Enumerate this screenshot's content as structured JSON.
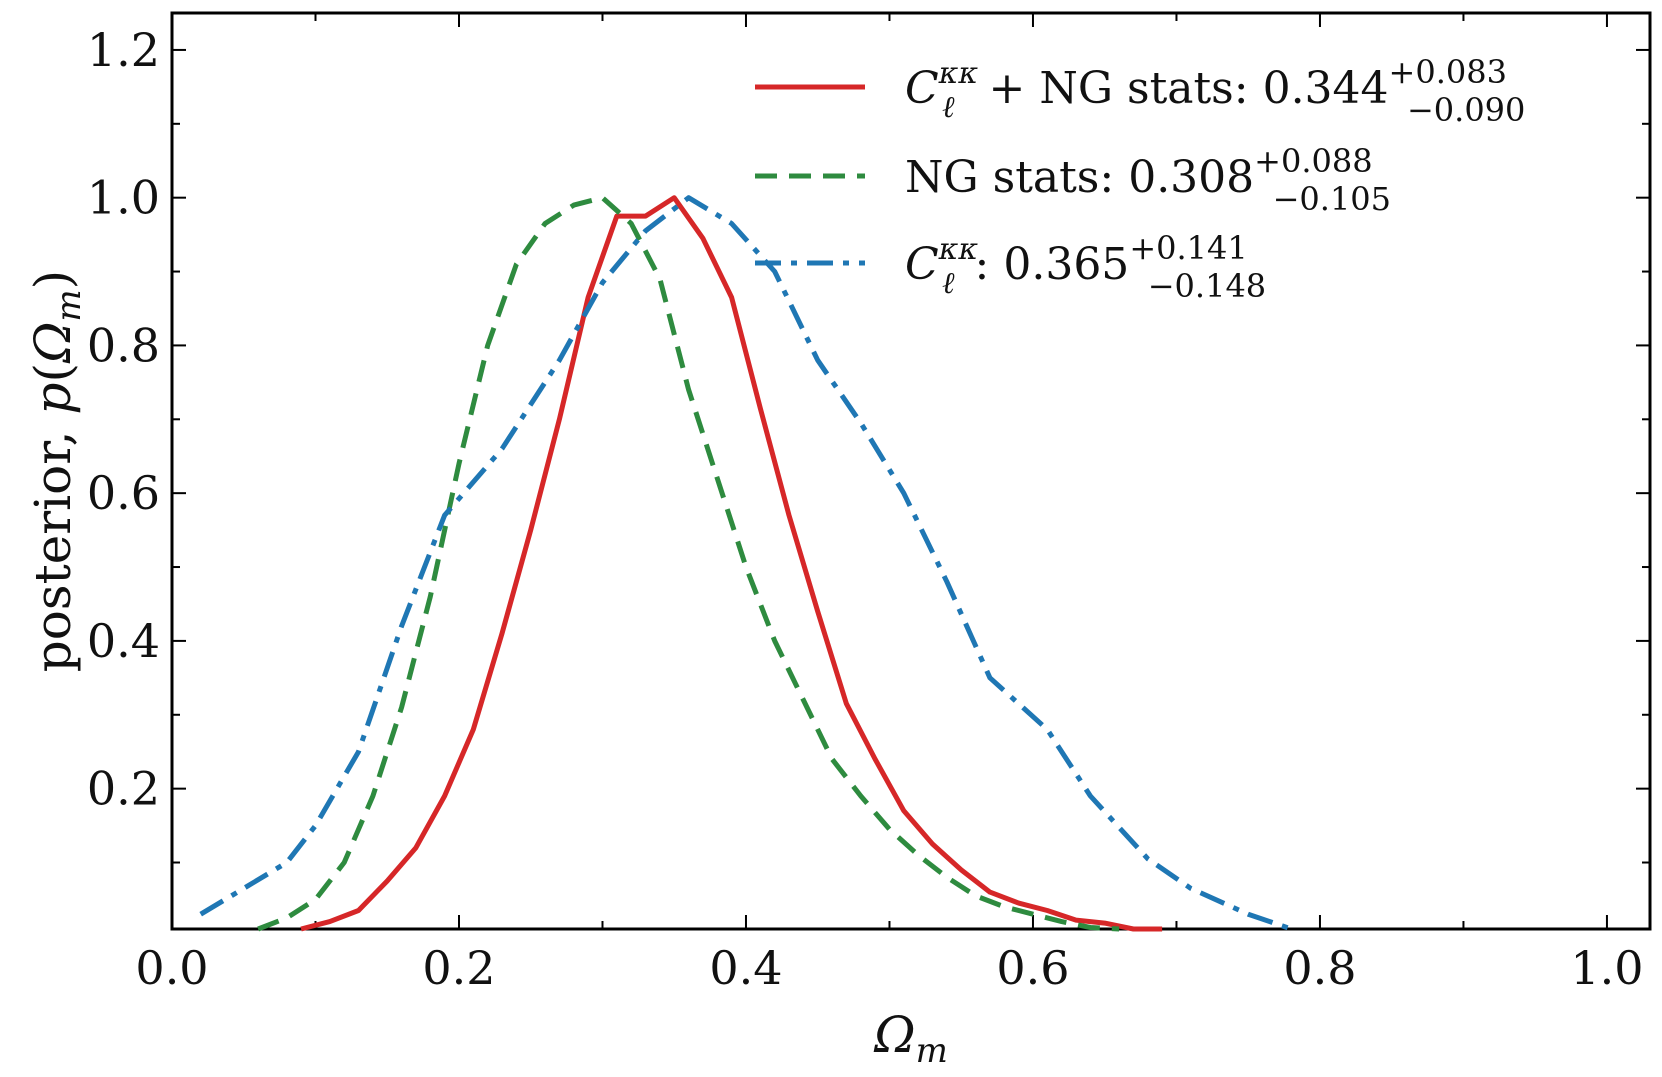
{
  "chart_data": {
    "type": "line",
    "title": "",
    "xlabel": "Ω_m",
    "ylabel": "posterior, p(Ω_m)",
    "xlim": [
      0.0,
      1.03
    ],
    "ylim": [
      0.01,
      1.25
    ],
    "xticks": [
      0.0,
      0.2,
      0.4,
      0.6,
      0.8,
      1.0
    ],
    "xtick_labels": [
      "0.0",
      "0.2",
      "0.4",
      "0.6",
      "0.8",
      "1.0"
    ],
    "yticks": [
      0.2,
      0.4,
      0.6,
      0.8,
      1.0,
      1.2
    ],
    "ytick_labels": [
      "0.2",
      "0.4",
      "0.6",
      "0.8",
      "1.0",
      "1.2"
    ],
    "grid": false,
    "legend_position": "top-right",
    "series": [
      {
        "name": "C_ℓ^κκ + NG stats: 0.344 +0.083 −0.090",
        "legend": {
          "main": "C",
          "sub": "ℓ",
          "sup": "κκ",
          "rest": " + NG stats: 0.344",
          "err_plus": "+0.083",
          "err_minus": "−0.090"
        },
        "color": "#d62728",
        "style": "solid",
        "x": [
          0.09,
          0.11,
          0.13,
          0.15,
          0.17,
          0.19,
          0.21,
          0.23,
          0.25,
          0.27,
          0.29,
          0.31,
          0.33,
          0.35,
          0.37,
          0.39,
          0.41,
          0.43,
          0.45,
          0.47,
          0.49,
          0.51,
          0.53,
          0.55,
          0.57,
          0.59,
          0.61,
          0.63,
          0.65,
          0.67,
          0.69
        ],
        "y": [
          0.01,
          0.02,
          0.035,
          0.075,
          0.12,
          0.19,
          0.28,
          0.41,
          0.55,
          0.7,
          0.865,
          0.975,
          0.975,
          1.0,
          0.945,
          0.865,
          0.715,
          0.57,
          0.44,
          0.315,
          0.24,
          0.17,
          0.125,
          0.09,
          0.06,
          0.045,
          0.035,
          0.022,
          0.018,
          0.01,
          0.005
        ]
      },
      {
        "name": "NG stats: 0.308 +0.088 −0.105",
        "legend": {
          "main": "NG stats: 0.308",
          "sub": "",
          "sup": "",
          "rest": "",
          "err_plus": "+0.088",
          "err_minus": "−0.105"
        },
        "color": "#2e8b3f",
        "style": "dashed",
        "x": [
          0.06,
          0.08,
          0.1,
          0.12,
          0.14,
          0.16,
          0.18,
          0.2,
          0.22,
          0.24,
          0.26,
          0.28,
          0.3,
          0.32,
          0.34,
          0.36,
          0.38,
          0.4,
          0.42,
          0.44,
          0.46,
          0.48,
          0.5,
          0.52,
          0.54,
          0.56,
          0.58,
          0.6,
          0.62,
          0.64,
          0.66
        ],
        "y": [
          0.01,
          0.025,
          0.05,
          0.1,
          0.19,
          0.31,
          0.46,
          0.64,
          0.8,
          0.91,
          0.965,
          0.99,
          1.0,
          0.965,
          0.89,
          0.74,
          0.62,
          0.5,
          0.4,
          0.32,
          0.24,
          0.19,
          0.145,
          0.11,
          0.08,
          0.055,
          0.04,
          0.03,
          0.02,
          0.012,
          0.008
        ]
      },
      {
        "name": "C_ℓ^κκ: 0.365 +0.141 −0.148",
        "legend": {
          "main": "C",
          "sub": "ℓ",
          "sup": "κκ",
          "rest": ": 0.365",
          "err_plus": "+0.141",
          "err_minus": "−0.148"
        },
        "color": "#1f77b4",
        "style": "dashdot",
        "x": [
          0.02,
          0.05,
          0.08,
          0.1,
          0.13,
          0.16,
          0.19,
          0.23,
          0.27,
          0.3,
          0.33,
          0.36,
          0.39,
          0.42,
          0.45,
          0.48,
          0.51,
          0.54,
          0.57,
          0.61,
          0.64,
          0.68,
          0.71,
          0.75,
          0.78
        ],
        "y": [
          0.03,
          0.065,
          0.1,
          0.15,
          0.25,
          0.42,
          0.57,
          0.66,
          0.78,
          0.885,
          0.955,
          1.0,
          0.965,
          0.9,
          0.78,
          0.695,
          0.6,
          0.48,
          0.35,
          0.28,
          0.19,
          0.105,
          0.065,
          0.03,
          0.01
        ]
      }
    ]
  }
}
